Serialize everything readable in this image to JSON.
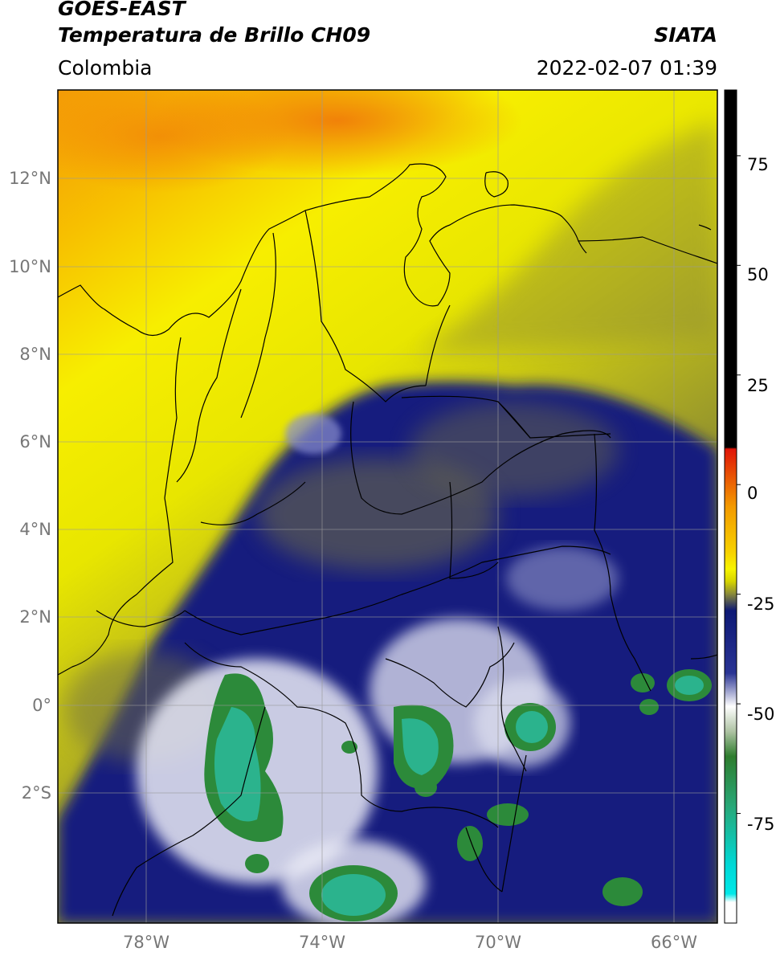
{
  "header": {
    "title_line1": "GOES-EAST",
    "title_line2": "Temperatura de Brillo CH09",
    "region": "Colombia",
    "source": "SIATA",
    "datetime": "2022-02-07 01:39"
  },
  "map": {
    "lat_labels": [
      "12°N",
      "10°N",
      "8°N",
      "6°N",
      "4°N",
      "2°N",
      "0°",
      "2°S"
    ],
    "lon_labels": [
      "78°W",
      "74°W",
      "70°W",
      "66°W"
    ],
    "colors": {
      "warm_orange": "#f39a06",
      "yellow": "#f7f200",
      "olive": "#8c8b2e",
      "navy": "#10197a",
      "white": "#f2f2f6",
      "green": "#2c8a3a",
      "teal": "#2bb38d"
    }
  },
  "colorbar": {
    "tick_labels": [
      "75",
      "50",
      "25",
      "0",
      "-25",
      "-50",
      "-75"
    ],
    "tick_values": [
      75,
      50,
      25,
      0,
      -25,
      -50,
      -75
    ],
    "range": [
      -100,
      90
    ],
    "colors": {
      "black": "#000000",
      "red": "#e01508",
      "orange": "#f59a00",
      "yellow": "#f7f400",
      "olive": "#8a8a3a",
      "navy": "#0d1975",
      "white": "#ffffff",
      "green": "#2e7d2e",
      "teal": "#22c8a8",
      "cyan": "#00e5e8"
    }
  }
}
